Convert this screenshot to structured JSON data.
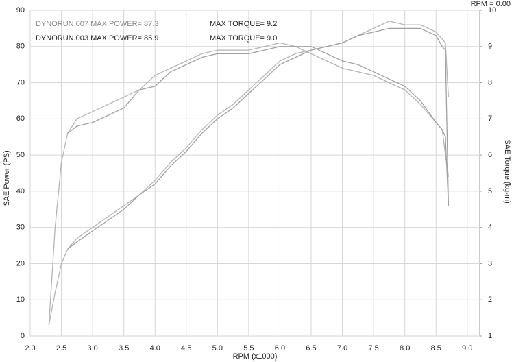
{
  "chart_data": {
    "type": "line",
    "status": "RPM = 0.00",
    "xlabel": "RPM (x1000)",
    "ylabel": "SAE Power (PS)",
    "y2label": "SAE Torque (kg-m)",
    "annotations": [
      {
        "text": "DYNORUN.007  MAX POWER= 87.3",
        "color": "#888888"
      },
      {
        "text": "MAX TORQUE= 9.2",
        "color": "#222222"
      },
      {
        "text": "DYNORUN.003  MAX POWER= 85.9",
        "color": "#222222"
      },
      {
        "text": "MAX TORQUE= 9.0",
        "color": "#222222"
      }
    ],
    "x": [
      2.3,
      2.4,
      2.5,
      2.6,
      2.75,
      3.0,
      3.25,
      3.5,
      3.75,
      4.0,
      4.25,
      4.5,
      4.75,
      5.0,
      5.25,
      5.5,
      5.75,
      6.0,
      6.25,
      6.5,
      6.75,
      7.0,
      7.25,
      7.5,
      7.75,
      8.0,
      8.25,
      8.5,
      8.6,
      8.65,
      8.7
    ],
    "series": [
      {
        "name": "DYNORUN.007 power",
        "color": "#b4b4b4",
        "axis": "y",
        "values": [
          3,
          12,
          20,
          24,
          27,
          30,
          33,
          36,
          39,
          43,
          48,
          52,
          57,
          61,
          64,
          68,
          72,
          76,
          78,
          79,
          80,
          81,
          83,
          85,
          87,
          86,
          86,
          84,
          82,
          81,
          66
        ]
      },
      {
        "name": "DYNORUN.007 torque",
        "color": "#b4b4b4",
        "axis": "y2",
        "values": [
          1.3,
          4.0,
          5.8,
          6.6,
          7.0,
          7.2,
          7.4,
          7.6,
          7.8,
          8.2,
          8.4,
          8.6,
          8.8,
          8.9,
          8.9,
          8.9,
          9.0,
          9.1,
          9.0,
          8.8,
          8.6,
          8.4,
          8.3,
          8.2,
          8.0,
          7.8,
          7.4,
          6.9,
          6.7,
          6.0,
          5.4
        ]
      },
      {
        "name": "DYNORUN.003 power",
        "color": "#a0a0a0",
        "axis": "y",
        "values": [
          null,
          null,
          null,
          24,
          26,
          29,
          32,
          35,
          39,
          42,
          47,
          51,
          56,
          60,
          63,
          67,
          71,
          75,
          77,
          79,
          80,
          81,
          83,
          84,
          85,
          85,
          85,
          83,
          80,
          79,
          36
        ]
      },
      {
        "name": "DYNORUN.003 torque",
        "color": "#a0a0a0",
        "axis": "y2",
        "values": [
          null,
          null,
          null,
          6.6,
          6.8,
          6.9,
          7.1,
          7.3,
          7.8,
          7.9,
          8.3,
          8.5,
          8.7,
          8.8,
          8.8,
          8.8,
          8.9,
          9.0,
          9.0,
          9.0,
          8.8,
          8.6,
          8.5,
          8.3,
          8.1,
          7.9,
          7.5,
          6.9,
          6.7,
          6.5,
          4.6
        ]
      }
    ],
    "xlim": [
      2.0,
      9.2
    ],
    "xticks": [
      {
        "value": 2,
        "label": "2.0"
      },
      2.5,
      {
        "value": 3,
        "label": "3.0"
      },
      3.5,
      {
        "value": 4,
        "label": "4.0"
      },
      4.5,
      {
        "value": 5,
        "label": "5.0"
      },
      5.5,
      {
        "value": 6,
        "label": "6.0"
      },
      6.5,
      {
        "value": 7,
        "label": "7.0"
      },
      7.5,
      {
        "value": 8,
        "label": "8.0"
      },
      8.5,
      {
        "value": 9,
        "label": "9.0"
      }
    ],
    "ylim": [
      0,
      90
    ],
    "yticks": [
      0,
      10,
      20,
      30,
      40,
      50,
      60,
      70,
      80,
      90
    ],
    "y2lim": [
      1,
      10
    ],
    "y2ticks": [
      1,
      2,
      3,
      4,
      5,
      6,
      7,
      8,
      9,
      10
    ],
    "grid": true
  }
}
